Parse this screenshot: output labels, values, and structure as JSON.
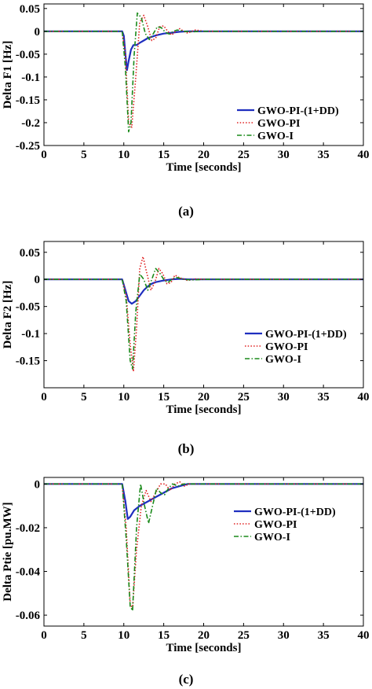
{
  "captions": [
    "(a)",
    "(b)",
    "(c)"
  ],
  "chart_data": [
    {
      "type": "line",
      "xlabel": "Time [seconds]",
      "ylabel": "Delta F1 [Hz]",
      "xlim": [
        0,
        40
      ],
      "ylim": [
        -0.25,
        0.06
      ],
      "xticks": [
        0,
        5,
        10,
        15,
        20,
        25,
        30,
        35,
        40
      ],
      "yticks": [
        0.05,
        0,
        -0.05,
        -0.1,
        -0.15,
        -0.2,
        -0.25
      ],
      "ytick_labels": [
        "0.05",
        "0",
        "-0.05",
        "-0.1",
        "-0.15",
        "-0.2",
        "-0.25"
      ],
      "grid": false,
      "legend_position": "middle-right",
      "series": [
        {
          "name": "GWO-PI-(1+DD)",
          "color": "#1f2fbf",
          "dash": "solid",
          "x": [
            0,
            9.8,
            10.0,
            10.2,
            10.4,
            10.6,
            10.9,
            11.2,
            11.6,
            12.0,
            12.5,
            13.0,
            13.5,
            14.0,
            15.0,
            16.0,
            17.0,
            18.0,
            20.0,
            22.0,
            40.0
          ],
          "y": [
            0,
            0,
            -0.01,
            -0.05,
            -0.085,
            -0.065,
            -0.04,
            -0.03,
            -0.03,
            -0.025,
            -0.02,
            -0.015,
            -0.012,
            -0.009,
            -0.005,
            -0.003,
            -0.001,
            0,
            0,
            0,
            0
          ]
        },
        {
          "name": "GWO-PI",
          "color": "#e02020",
          "dash": "dotted",
          "x": [
            0,
            9.8,
            10.2,
            10.6,
            11.0,
            11.5,
            12.0,
            12.5,
            13.0,
            13.5,
            14.0,
            14.5,
            15.0,
            15.5,
            16.0,
            16.5,
            17.0,
            17.5,
            18.0,
            18.5,
            19.0,
            20.0,
            22.0,
            40.0
          ],
          "y": [
            0,
            0,
            -0.05,
            -0.2,
            -0.21,
            -0.1,
            0.02,
            0.035,
            0.01,
            -0.02,
            -0.015,
            0.01,
            0.012,
            0.0,
            -0.008,
            0.0,
            0.006,
            0.0,
            -0.004,
            0.0,
            0.003,
            0.0,
            0.0,
            0
          ]
        },
        {
          "name": "GWO-I",
          "color": "#1a8a1a",
          "dash": "dashdot",
          "x": [
            0,
            9.8,
            10.2,
            10.6,
            10.9,
            11.3,
            11.7,
            12.2,
            12.7,
            13.2,
            13.7,
            14.2,
            14.7,
            15.2,
            15.7,
            16.2,
            16.7,
            17.5,
            18.5,
            20.0,
            22.0,
            40.0
          ],
          "y": [
            0,
            0,
            -0.08,
            -0.22,
            -0.2,
            -0.05,
            0.04,
            0.03,
            -0.005,
            -0.018,
            -0.005,
            0.01,
            0.008,
            -0.002,
            -0.006,
            0.0,
            0.003,
            0.0,
            -0.001,
            0.0,
            0.0,
            0
          ]
        }
      ]
    },
    {
      "type": "line",
      "xlabel": "Time [seconds]",
      "ylabel": "Delta F2 [Hz]",
      "xlim": [
        0,
        40
      ],
      "ylim": [
        -0.2,
        0.07
      ],
      "xticks": [
        0,
        5,
        10,
        15,
        20,
        25,
        30,
        35,
        40
      ],
      "yticks": [
        0.05,
        0,
        -0.05,
        -0.1,
        -0.15
      ],
      "ytick_labels": [
        "0.05",
        "0",
        "-0.05",
        "-0.1",
        "-0.15"
      ],
      "grid": false,
      "legend_position": "middle-right",
      "series": [
        {
          "name": "GWO-PI-(1+DD)",
          "color": "#1f2fbf",
          "dash": "solid",
          "x": [
            0,
            9.8,
            10.2,
            10.6,
            11.0,
            11.5,
            12.0,
            12.5,
            13.0,
            13.5,
            14.0,
            15.0,
            16.0,
            17.0,
            18.0,
            20.0,
            22.0,
            40.0
          ],
          "y": [
            0,
            0,
            -0.02,
            -0.04,
            -0.045,
            -0.04,
            -0.03,
            -0.02,
            -0.013,
            -0.008,
            -0.005,
            -0.002,
            0.0,
            0.001,
            0.0,
            0.0,
            0.0,
            0
          ]
        },
        {
          "name": "GWO-PI",
          "color": "#e02020",
          "dash": "dotted",
          "x": [
            0,
            9.8,
            10.3,
            10.8,
            11.2,
            11.6,
            12.0,
            12.4,
            12.9,
            13.4,
            13.9,
            14.4,
            14.9,
            15.4,
            15.9,
            16.4,
            17.0,
            18.0,
            19.0,
            20.0,
            22.0,
            40.0
          ],
          "y": [
            0,
            0,
            -0.03,
            -0.12,
            -0.17,
            -0.09,
            0.02,
            0.042,
            0.01,
            -0.02,
            -0.005,
            0.02,
            0.01,
            -0.008,
            -0.006,
            0.008,
            0.003,
            -0.002,
            0.001,
            0.0,
            0.0,
            0
          ]
        },
        {
          "name": "GWO-I",
          "color": "#1a8a1a",
          "dash": "dashdot",
          "x": [
            0,
            9.8,
            10.3,
            10.8,
            11.1,
            11.5,
            12.0,
            12.5,
            13.0,
            13.5,
            14.0,
            14.5,
            15.0,
            15.5,
            16.0,
            16.5,
            17.5,
            18.5,
            20.0,
            22.0,
            40.0
          ],
          "y": [
            0,
            0,
            -0.04,
            -0.15,
            -0.165,
            -0.06,
            0.01,
            0.0,
            -0.02,
            0.0,
            0.02,
            0.012,
            0.0,
            -0.006,
            0.0,
            0.004,
            0.0,
            -0.001,
            0.0,
            0.0,
            0
          ]
        }
      ]
    },
    {
      "type": "line",
      "xlabel": "Time [seconds]",
      "ylabel": "Delta Ptie [pu.MW]",
      "xlim": [
        0,
        40
      ],
      "ylim": [
        -0.065,
        0.003
      ],
      "xticks": [
        0,
        5,
        10,
        15,
        20,
        25,
        30,
        35,
        40
      ],
      "yticks": [
        0,
        -0.02,
        -0.04,
        -0.06
      ],
      "ytick_labels": [
        "0",
        "-0.02",
        "-0.04",
        "-0.06"
      ],
      "grid": false,
      "legend_position": "middle-right",
      "series": [
        {
          "name": "GWO-PI-(1+DD)",
          "color": "#1f2fbf",
          "dash": "solid",
          "x": [
            0,
            9.8,
            10.2,
            10.5,
            10.8,
            11.3,
            12.0,
            13.0,
            14.0,
            15.0,
            16.0,
            17.0,
            18.0,
            19.0,
            20.0,
            22.0,
            40.0
          ],
          "y": [
            0,
            0,
            -0.008,
            -0.016,
            -0.015,
            -0.012,
            -0.01,
            -0.008,
            -0.006,
            -0.004,
            -0.002,
            -0.001,
            0.0,
            0.0,
            0.0,
            0.0,
            0
          ]
        },
        {
          "name": "GWO-PI",
          "color": "#e02020",
          "dash": "dotted",
          "x": [
            0,
            9.8,
            10.3,
            10.8,
            11.1,
            11.6,
            12.2,
            12.8,
            13.4,
            14.0,
            14.6,
            15.2,
            15.8,
            16.4,
            17.0,
            17.6,
            18.2,
            19.0,
            20.0,
            22.0,
            40.0
          ],
          "y": [
            0,
            0,
            -0.02,
            -0.055,
            -0.057,
            -0.03,
            -0.01,
            -0.003,
            -0.008,
            -0.004,
            0.0,
            0.0,
            -0.003,
            0.0,
            0.001,
            -0.001,
            0.0,
            0.0,
            0.0,
            0.0,
            0
          ]
        },
        {
          "name": "GWO-I",
          "color": "#1a8a1a",
          "dash": "dashdot",
          "x": [
            0,
            9.8,
            10.3,
            10.8,
            11.1,
            11.6,
            12.1,
            12.6,
            13.1,
            13.6,
            14.1,
            14.6,
            15.1,
            15.6,
            16.1,
            16.8,
            17.5,
            18.5,
            20.0,
            22.0,
            40.0
          ],
          "y": [
            0,
            0,
            -0.025,
            -0.056,
            -0.058,
            -0.02,
            0.0,
            -0.01,
            -0.018,
            -0.01,
            -0.002,
            -0.004,
            -0.005,
            -0.002,
            0.0,
            -0.001,
            0.0,
            0.0,
            0.0,
            0.0,
            0
          ]
        }
      ]
    }
  ]
}
